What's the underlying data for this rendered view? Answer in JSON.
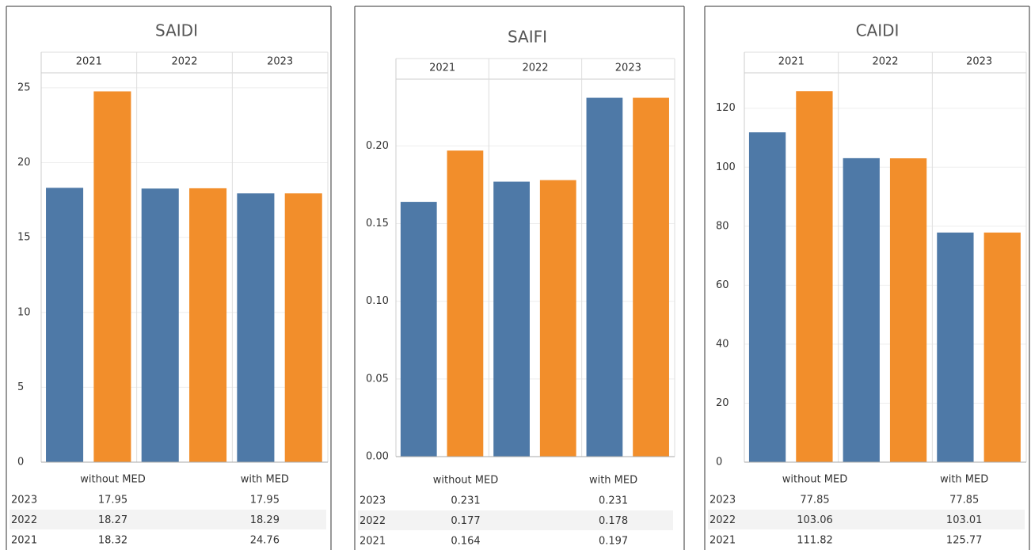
{
  "chart_data": [
    {
      "type": "bar",
      "title": "SAIDI",
      "categories": [
        "2021",
        "2022",
        "2023"
      ],
      "series": [
        {
          "name": "without MED",
          "color": "#4e79a7",
          "values": [
            18.32,
            18.27,
            17.95
          ]
        },
        {
          "name": "with MED",
          "color": "#f28e2b",
          "values": [
            24.76,
            18.29,
            17.95
          ]
        }
      ],
      "ylim": [
        0,
        26
      ],
      "yticks": [
        0,
        5,
        10,
        15,
        20,
        25
      ],
      "grid": true
    },
    {
      "type": "bar",
      "title": "SAIFI",
      "categories": [
        "2021",
        "2022",
        "2023"
      ],
      "series": [
        {
          "name": "without MED",
          "color": "#4e79a7",
          "values": [
            0.164,
            0.177,
            0.231
          ]
        },
        {
          "name": "with MED",
          "color": "#f28e2b",
          "values": [
            0.197,
            0.178,
            0.231
          ]
        }
      ],
      "ylim": [
        0,
        0.243
      ],
      "yticks": [
        {
          "value": 0,
          "label": "0.00"
        },
        0.05,
        {
          "value": 0.1,
          "label": "0.10"
        },
        0.15,
        {
          "value": 0.2,
          "label": "0.20"
        }
      ],
      "grid": true
    },
    {
      "type": "bar",
      "title": "CAIDI",
      "categories": [
        "2021",
        "2022",
        "2023"
      ],
      "series": [
        {
          "name": "without MED",
          "color": "#4e79a7",
          "values": [
            111.82,
            103.06,
            77.85
          ]
        },
        {
          "name": "with MED",
          "color": "#f28e2b",
          "values": [
            125.77,
            103.01,
            77.85
          ]
        }
      ],
      "ylim": [
        0,
        132
      ],
      "yticks": [
        0,
        20,
        40,
        60,
        80,
        100,
        120
      ],
      "grid": true
    }
  ]
}
